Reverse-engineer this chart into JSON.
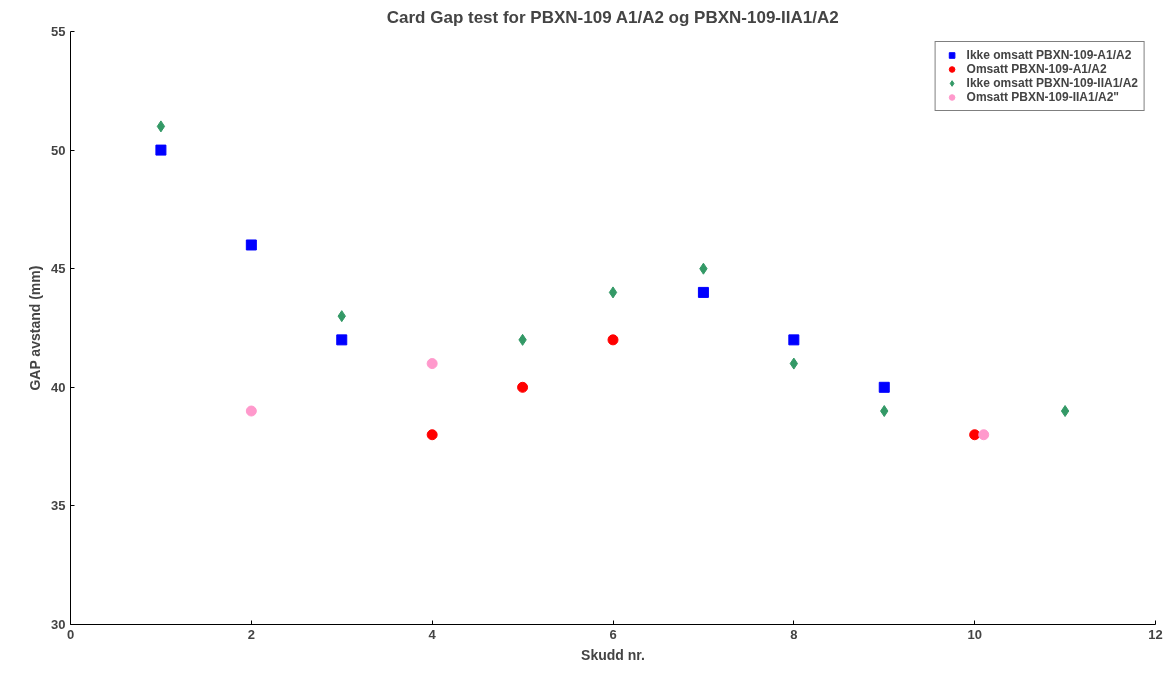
{
  "chart_data": {
    "type": "scatter",
    "title": "Card Gap test for PBXN-109 A1/A2 og PBXN-109-IIA1/A2",
    "xlabel": "Skudd nr.",
    "ylabel": "GAP avstand (mm)",
    "xlim": [
      0,
      12
    ],
    "xticks": [
      0,
      2,
      4,
      6,
      8,
      10,
      12
    ],
    "ylim": [
      30,
      55
    ],
    "yticks": [
      30,
      35,
      40,
      45,
      50,
      55
    ],
    "grid": false,
    "legend": "top right",
    "series": [
      {
        "name": "Ikke omsatt PBXN-109-A1/A2",
        "color": "#0000ff",
        "marker": "square",
        "x": [
          1,
          2,
          3,
          7,
          8,
          9
        ],
        "values": [
          50,
          46,
          42,
          44,
          42,
          40
        ]
      },
      {
        "name": "Omsatt PBXN-109-A1/A2",
        "color": "#ff0000",
        "marker": "circle",
        "x": [
          4,
          5,
          6,
          10
        ],
        "values": [
          38,
          40,
          42,
          38
        ]
      },
      {
        "name": "Ikke omsatt PBXN-109-IIA1/A2",
        "color": "#339966",
        "marker": "diamond",
        "x": [
          1,
          3,
          5,
          6,
          7,
          8,
          9,
          11
        ],
        "values": [
          51,
          43,
          42,
          44,
          45,
          41,
          39,
          39
        ]
      },
      {
        "name": "Omsatt PBXN-109-IIA1/A2\"",
        "color": "#ff99cc",
        "marker": "circle",
        "x": [
          2,
          4,
          10.1
        ],
        "values": [
          39,
          41,
          38
        ]
      }
    ]
  }
}
